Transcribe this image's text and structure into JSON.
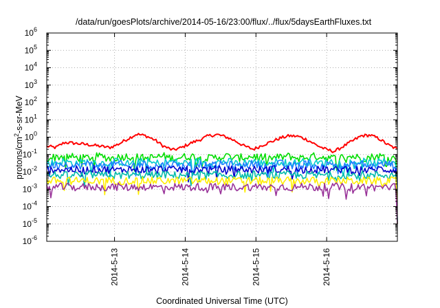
{
  "chart_data": {
    "type": "line",
    "title": "/data/run/goesPlots/archive/2014-05-16/23:00/flux/../flux/5daysEarthFluxes.txt",
    "xlabel": "Coordinated Universal Time (UTC)",
    "ylabel_parts": {
      "base": "protons/cm",
      "sup": "2",
      "rest": "-s-sr-MeV"
    },
    "yscale": "log",
    "ylim": [
      1e-06,
      1000000.0
    ],
    "y_ticks": [
      {
        "exp": "-6"
      },
      {
        "exp": "-5"
      },
      {
        "exp": "-4"
      },
      {
        "exp": "-3"
      },
      {
        "exp": "-2"
      },
      {
        "exp": "-1"
      },
      {
        "exp": "0"
      },
      {
        "exp": "1"
      },
      {
        "exp": "2"
      },
      {
        "exp": "3"
      },
      {
        "exp": "4"
      },
      {
        "exp": "5"
      },
      {
        "exp": "6"
      }
    ],
    "y_tick_base": "10",
    "xlim": [
      "2014-05-12 01:00",
      "2014-05-17 00:00"
    ],
    "x_ticks": [
      "2014-5-13",
      "2014-5-14",
      "2014-5-15",
      "2014-5-16"
    ],
    "grid": true,
    "series": [
      {
        "color": "#ff0000",
        "base_values": [
          0.3,
          0.25,
          0.5,
          0.45,
          0.4,
          0.35,
          0.3,
          0.25,
          0.4,
          0.8,
          1.5,
          1.2,
          0.7,
          0.3,
          0.18,
          0.25,
          0.45,
          0.7,
          1.2,
          1.4,
          1.0,
          0.6,
          0.3,
          0.2,
          0.35,
          0.55,
          0.9,
          1.2,
          1.1,
          0.7,
          0.35,
          0.2,
          0.15,
          0.3,
          0.6,
          1.2,
          1.3,
          0.8,
          0.35,
          0.2
        ]
      },
      {
        "color": "#00dd00",
        "base_values": [
          0.06,
          0.07,
          0.08,
          0.07,
          0.06,
          0.07,
          0.08,
          0.06,
          0.07,
          0.08,
          0.07,
          0.06,
          0.07,
          0.08,
          0.06,
          0.07,
          0.08,
          0.07,
          0.06,
          0.07,
          0.08,
          0.06,
          0.07,
          0.08,
          0.07,
          0.06,
          0.07,
          0.08,
          0.06,
          0.07,
          0.08,
          0.07,
          0.06,
          0.07,
          0.08,
          0.06,
          0.07,
          0.08,
          0.07,
          0.06
        ]
      },
      {
        "color": "#00cccc",
        "base_values": [
          0.03,
          0.035,
          0.04,
          0.03,
          0.035,
          0.04,
          0.03,
          0.035,
          0.04,
          0.03,
          0.035,
          0.04,
          0.03,
          0.035,
          0.04,
          0.03,
          0.035,
          0.04,
          0.03,
          0.035,
          0.04,
          0.03,
          0.035,
          0.04,
          0.03,
          0.035,
          0.04,
          0.03,
          0.035,
          0.04,
          0.03,
          0.035,
          0.04,
          0.03,
          0.035,
          0.04,
          0.03,
          0.035,
          0.04,
          0.03
        ]
      },
      {
        "color": "#1e7fff",
        "base_values": [
          0.02,
          0.025,
          0.03,
          0.02,
          0.025,
          0.03,
          0.02,
          0.025,
          0.03,
          0.02,
          0.025,
          0.03,
          0.02,
          0.025,
          0.03,
          0.02,
          0.025,
          0.03,
          0.02,
          0.025,
          0.03,
          0.02,
          0.025,
          0.03,
          0.02,
          0.025,
          0.03,
          0.02,
          0.025,
          0.03,
          0.02,
          0.025,
          0.03,
          0.02,
          0.025,
          0.03,
          0.02,
          0.025,
          0.03,
          0.02
        ]
      },
      {
        "color": "#0000cc",
        "base_values": [
          0.012,
          0.015,
          0.013,
          0.014,
          0.012,
          0.015,
          0.013,
          0.014,
          0.012,
          0.015,
          0.013,
          0.014,
          0.012,
          0.015,
          0.013,
          0.014,
          0.012,
          0.015,
          0.013,
          0.014,
          0.012,
          0.015,
          0.013,
          0.014,
          0.012,
          0.015,
          0.013,
          0.014,
          0.012,
          0.015,
          0.013,
          0.014,
          0.012,
          0.015,
          0.013,
          0.014,
          0.012,
          0.015,
          0.013,
          0.014
        ]
      },
      {
        "color": "#00bbaa",
        "base_values": [
          0.006,
          0.007,
          0.006,
          0.007,
          0.006,
          0.007,
          0.006,
          0.007,
          0.006,
          0.007,
          0.006,
          0.007,
          0.006,
          0.007,
          0.006,
          0.007,
          0.006,
          0.007,
          0.006,
          0.007,
          0.006,
          0.007,
          0.006,
          0.007,
          0.006,
          0.007,
          0.006,
          0.007,
          0.006,
          0.007,
          0.006,
          0.007,
          0.006,
          0.007,
          0.006,
          0.007,
          0.006,
          0.007,
          0.006,
          0.007
        ]
      },
      {
        "color": "#ffee00",
        "base_values": [
          0.003,
          0.0031,
          0.003,
          0.0031,
          0.003,
          0.0031,
          0.003,
          0.0031,
          0.003,
          0.0031,
          0.003,
          0.0031,
          0.003,
          0.0031,
          0.003,
          0.0031,
          0.003,
          0.0031,
          0.003,
          0.0031,
          0.003,
          0.0031,
          0.003,
          0.0031,
          0.003,
          0.0031,
          0.003,
          0.0031,
          0.003,
          0.0031,
          0.003,
          0.0031,
          0.003,
          0.0031,
          0.003,
          0.0031,
          0.003,
          0.0031,
          0.003,
          0.0031
        ]
      },
      {
        "color": "#993399",
        "base_values": [
          0.0013,
          0.0013,
          0.0014,
          0.0013,
          0.0013,
          0.0014,
          0.0013,
          0.0013,
          0.0014,
          0.0013,
          0.0013,
          0.0014,
          0.0013,
          0.0013,
          0.0014,
          0.0013,
          0.0013,
          0.0014,
          0.0013,
          0.0013,
          0.0014,
          0.0013,
          0.0013,
          0.0014,
          0.0013,
          0.0013,
          0.0014,
          0.0013,
          0.0013,
          0.0014,
          0.0013,
          0.0013,
          0.0014,
          0.0013,
          0.0013,
          0.0014,
          0.0013,
          0.0013,
          0.0014,
          0.0013
        ]
      }
    ]
  }
}
